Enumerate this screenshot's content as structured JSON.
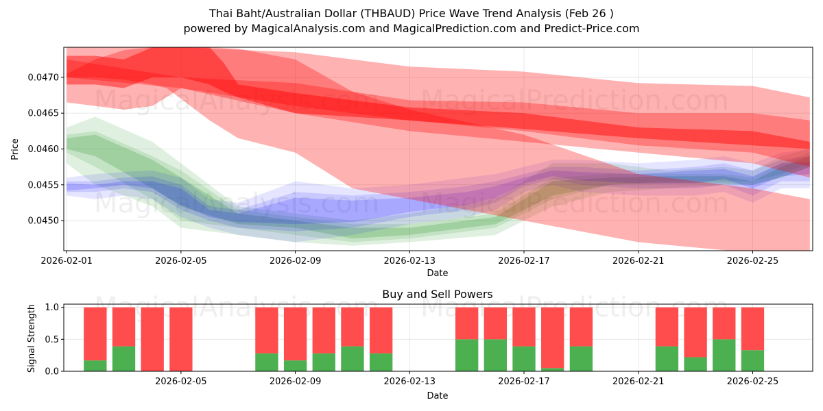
{
  "title_line1": "Thai Baht/Australian Dollar (THBAUD) Price Wave Trend Analysis (Feb 26 )",
  "title_line2": "powered by MagicalAnalysis.com and MagicalPrediction.com and Predict-Price.com",
  "watermarks": [
    "MagicalAnalysis.com",
    "MagicalPrediction.com"
  ],
  "colors": {
    "red": "#ff0000",
    "green": "#008000",
    "blue": "#0000ff",
    "bar_green": "#4caf50",
    "bar_red": "#ff4c4c"
  },
  "chart_data": [
    {
      "type": "area",
      "title": "",
      "xlabel": "Date",
      "ylabel": "Price",
      "xlim": [
        -0.1,
        26.1
      ],
      "ylim": [
        0.04458,
        0.04742
      ],
      "xtick_values": [
        0,
        4,
        8,
        12,
        16,
        20,
        24
      ],
      "xtick_labels": [
        "2026-02-01",
        "2026-02-05",
        "2026-02-09",
        "2026-02-13",
        "2026-02-17",
        "2026-02-21",
        "2026-02-25"
      ],
      "ytick_values": [
        0.045,
        0.0455,
        0.046,
        0.0465,
        0.047
      ],
      "ytick_labels": [
        "0.0450",
        "0.0455",
        "0.0460",
        "0.0465",
        "0.0470"
      ],
      "grid": true,
      "series": [
        {
          "name": "red-wide-1",
          "color": "red",
          "opacity": 0.3,
          "x": [
            0,
            1,
            2,
            3,
            4,
            8,
            12,
            16,
            20,
            24,
            26
          ],
          "upper": [
            0.04742,
            0.04742,
            0.04742,
            0.04742,
            0.04742,
            0.04735,
            0.04715,
            0.04708,
            0.04692,
            0.04688,
            0.04672
          ],
          "lower": [
            0.04665,
            0.0466,
            0.04655,
            0.0466,
            0.04685,
            0.0466,
            0.0464,
            0.04625,
            0.04605,
            0.04595,
            0.04575
          ]
        },
        {
          "name": "red-mid-2",
          "color": "red",
          "opacity": 0.3,
          "x": [
            0,
            1,
            2,
            3,
            3.5,
            4,
            5,
            6,
            8,
            10,
            12,
            16,
            20,
            24,
            26
          ],
          "upper": [
            0.04705,
            0.04725,
            0.04738,
            0.04742,
            0.04742,
            0.04742,
            0.04742,
            0.0474,
            0.04725,
            0.0468,
            0.04655,
            0.0462,
            0.04565,
            0.04545,
            0.0453
          ],
          "lower": [
            0.047,
            0.047,
            0.04697,
            0.0469,
            0.04685,
            0.0467,
            0.0464,
            0.04615,
            0.04595,
            0.04545,
            0.0453,
            0.045,
            0.0447,
            0.04455,
            0.0445
          ]
        },
        {
          "name": "red-wide-3",
          "color": "red",
          "opacity": 0.3,
          "x": [
            0,
            4,
            8,
            12,
            16,
            20,
            24,
            26
          ],
          "upper": [
            0.04725,
            0.047,
            0.04692,
            0.04668,
            0.04665,
            0.0465,
            0.0465,
            0.0464
          ],
          "lower": [
            0.047,
            0.04685,
            0.0465,
            0.04625,
            0.0461,
            0.04595,
            0.0458,
            0.0456
          ]
        },
        {
          "name": "red-core",
          "color": "red",
          "opacity": 0.45,
          "x": [
            0,
            1,
            2,
            3,
            4,
            5,
            5.5,
            6,
            8,
            12,
            16,
            20,
            24,
            26
          ],
          "upper": [
            0.0473,
            0.0473,
            0.04725,
            0.04742,
            0.04742,
            0.04742,
            0.0472,
            0.0469,
            0.04678,
            0.04658,
            0.0465,
            0.0463,
            0.04625,
            0.0461
          ],
          "lower": [
            0.0469,
            0.0469,
            0.04685,
            0.047,
            0.047,
            0.0469,
            0.0468,
            0.04672,
            0.0465,
            0.0464,
            0.04628,
            0.04615,
            0.04605,
            0.046
          ]
        },
        {
          "name": "green-1",
          "color": "green",
          "opacity": 0.12,
          "x": [
            0,
            1,
            3,
            4,
            6,
            8,
            10,
            12,
            15,
            17,
            19,
            21,
            23,
            24,
            25,
            26
          ],
          "upper": [
            0.0463,
            0.04645,
            0.0461,
            0.0458,
            0.0452,
            0.0451,
            0.045,
            0.0451,
            0.0453,
            0.0458,
            0.0458,
            0.0457,
            0.04575,
            0.0457,
            0.0459,
            0.046
          ],
          "lower": [
            0.0458,
            0.0455,
            0.0452,
            0.0449,
            0.0448,
            0.0447,
            0.04465,
            0.0447,
            0.0448,
            0.0452,
            0.0454,
            0.04545,
            0.0455,
            0.0455,
            0.0456,
            0.04575
          ]
        },
        {
          "name": "green-2",
          "color": "green",
          "opacity": 0.12,
          "x": [
            0,
            1,
            3,
            4,
            6,
            8,
            10,
            12,
            15,
            17,
            19,
            21,
            23,
            24,
            25,
            26
          ],
          "upper": [
            0.0462,
            0.04625,
            0.0459,
            0.0457,
            0.04515,
            0.04505,
            0.04495,
            0.04495,
            0.0451,
            0.0456,
            0.04565,
            0.04565,
            0.04565,
            0.0456,
            0.0458,
            0.04595
          ],
          "lower": [
            0.04595,
            0.04575,
            0.0453,
            0.045,
            0.0449,
            0.0448,
            0.0447,
            0.04475,
            0.0449,
            0.0453,
            0.0455,
            0.04555,
            0.04555,
            0.04555,
            0.04565,
            0.0458
          ]
        },
        {
          "name": "green-3",
          "color": "green",
          "opacity": 0.18,
          "x": [
            0,
            1,
            3,
            4,
            6,
            8,
            10,
            12,
            15,
            17,
            19,
            21,
            23,
            24,
            25,
            26
          ],
          "upper": [
            0.04615,
            0.0462,
            0.04585,
            0.0456,
            0.0451,
            0.045,
            0.0449,
            0.0449,
            0.04505,
            0.04555,
            0.0456,
            0.04562,
            0.04562,
            0.04555,
            0.04575,
            0.0459
          ],
          "lower": [
            0.046,
            0.0459,
            0.04545,
            0.0452,
            0.04495,
            0.0449,
            0.04475,
            0.0448,
            0.04495,
            0.04535,
            0.0455,
            0.04552,
            0.04552,
            0.0455,
            0.0456,
            0.04575
          ]
        },
        {
          "name": "blue-1",
          "color": "blue",
          "opacity": 0.1,
          "x": [
            0,
            1,
            2,
            3,
            4,
            5,
            6,
            8,
            10,
            12,
            14,
            15,
            16,
            17,
            18,
            20,
            22,
            23,
            24,
            25,
            26
          ],
          "upper": [
            0.0456,
            0.04565,
            0.04568,
            0.0457,
            0.0456,
            0.0453,
            0.04525,
            0.04555,
            0.04545,
            0.0455,
            0.0456,
            0.04565,
            0.04575,
            0.04585,
            0.04585,
            0.0458,
            0.04585,
            0.0459,
            0.0458,
            0.04595,
            0.046
          ],
          "lower": [
            0.04535,
            0.0453,
            0.04535,
            0.0453,
            0.04505,
            0.0449,
            0.0448,
            0.0447,
            0.0448,
            0.04495,
            0.04505,
            0.04515,
            0.0454,
            0.0455,
            0.0454,
            0.04535,
            0.04535,
            0.0454,
            0.04525,
            0.04545,
            0.04545
          ]
        },
        {
          "name": "blue-2",
          "color": "blue",
          "opacity": 0.12,
          "x": [
            0,
            1,
            2,
            3,
            4,
            5,
            6,
            8,
            10,
            12,
            14,
            15,
            16,
            17,
            18,
            20,
            22,
            23,
            24,
            25,
            26
          ],
          "upper": [
            0.04555,
            0.04555,
            0.0456,
            0.04562,
            0.0455,
            0.0452,
            0.04515,
            0.0454,
            0.04535,
            0.0454,
            0.04548,
            0.04555,
            0.04565,
            0.04575,
            0.04575,
            0.0457,
            0.04575,
            0.0458,
            0.0457,
            0.04585,
            0.0459
          ],
          "lower": [
            0.0454,
            0.0454,
            0.04545,
            0.0454,
            0.04515,
            0.045,
            0.0449,
            0.04485,
            0.0449,
            0.04505,
            0.04515,
            0.04525,
            0.04548,
            0.04558,
            0.0455,
            0.04545,
            0.04545,
            0.0455,
            0.04535,
            0.04555,
            0.04555
          ]
        },
        {
          "name": "blue-3",
          "color": "blue",
          "opacity": 0.16,
          "x": [
            0,
            1,
            2,
            3,
            4,
            5,
            6,
            8,
            10,
            12,
            14,
            15,
            16,
            17,
            18,
            20,
            22,
            23,
            24,
            25,
            26
          ],
          "upper": [
            0.04552,
            0.0455,
            0.04555,
            0.04555,
            0.04545,
            0.04515,
            0.0451,
            0.04532,
            0.04528,
            0.04532,
            0.0454,
            0.04548,
            0.0456,
            0.0457,
            0.04568,
            0.04565,
            0.0457,
            0.04572,
            0.04562,
            0.0458,
            0.04582
          ],
          "lower": [
            0.04542,
            0.04545,
            0.0455,
            0.04545,
            0.04522,
            0.04505,
            0.04498,
            0.04495,
            0.04498,
            0.04512,
            0.04522,
            0.04532,
            0.04552,
            0.04562,
            0.04556,
            0.04552,
            0.04552,
            0.04558,
            0.04545,
            0.04562,
            0.04565
          ]
        }
      ]
    },
    {
      "type": "bar",
      "title": "Buy and Sell Powers",
      "xlabel": "Date",
      "ylabel": "Signal Strength",
      "xlim": [
        -0.1,
        26.1
      ],
      "ylim": [
        0,
        1.05
      ],
      "xtick_values": [
        4,
        8,
        12,
        16,
        20,
        24
      ],
      "xtick_labels": [
        "2026-02-05",
        "2026-02-09",
        "2026-02-13",
        "2026-02-17",
        "2026-02-21",
        "2026-02-25"
      ],
      "ytick_values": [
        0.0,
        0.5,
        1.0
      ],
      "ytick_labels": [
        "0.0",
        "0.5",
        "1.0"
      ],
      "grid": true,
      "x": [
        1,
        2,
        3,
        4,
        7,
        8,
        9,
        10,
        11,
        14,
        15,
        16,
        17,
        18,
        21,
        22,
        23,
        24
      ],
      "series": [
        {
          "name": "buy",
          "color": "bar_green",
          "values": [
            0.17,
            0.39,
            0.0,
            0.0,
            0.28,
            0.17,
            0.28,
            0.39,
            0.28,
            0.5,
            0.5,
            0.39,
            0.05,
            0.39,
            0.39,
            0.22,
            0.5,
            0.33
          ]
        },
        {
          "name": "sell",
          "color": "bar_red",
          "values": [
            0.83,
            0.61,
            1.0,
            1.0,
            0.72,
            0.83,
            0.72,
            0.61,
            0.72,
            0.5,
            0.5,
            0.61,
            0.95,
            0.61,
            0.61,
            0.78,
            0.5,
            0.67
          ]
        }
      ]
    }
  ]
}
